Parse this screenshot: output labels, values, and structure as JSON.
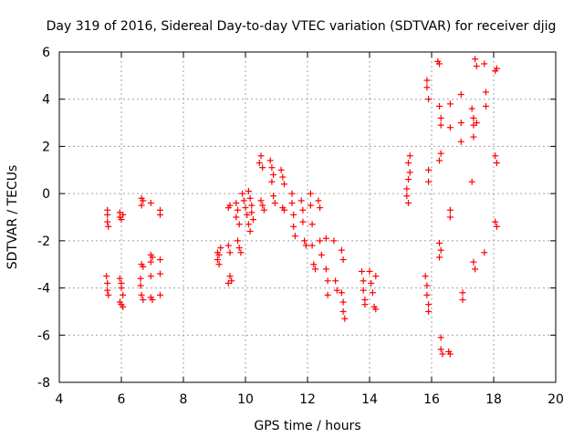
{
  "chart_data": {
    "type": "scatter",
    "title": "Day 319 of 2016, Sidereal Day-to-day VTEC variation (SDTVAR) for receiver djig",
    "xlabel": "GPS time / hours",
    "ylabel": "SDTVAR / TECUs",
    "xlim": [
      4,
      20
    ],
    "ylim": [
      -8,
      6
    ],
    "xticks": [
      4,
      6,
      8,
      10,
      12,
      14,
      16,
      18,
      20
    ],
    "yticks": [
      -8,
      -6,
      -4,
      -2,
      0,
      2,
      4,
      6
    ],
    "grid": true,
    "marker": "plus",
    "color": "#ff0000",
    "series": [
      {
        "name": "SDTVAR",
        "points": [
          [
            5.55,
            -0.7
          ],
          [
            5.55,
            -0.9
          ],
          [
            5.55,
            -1.2
          ],
          [
            5.58,
            -1.4
          ],
          [
            5.52,
            -3.5
          ],
          [
            5.55,
            -3.8
          ],
          [
            5.55,
            -4.1
          ],
          [
            5.58,
            -4.3
          ],
          [
            5.95,
            -0.8
          ],
          [
            5.95,
            -1.0
          ],
          [
            6.0,
            -1.1
          ],
          [
            6.05,
            -0.9
          ],
          [
            5.95,
            -3.6
          ],
          [
            6.0,
            -3.8
          ],
          [
            6.0,
            -4.0
          ],
          [
            6.05,
            -4.3
          ],
          [
            5.95,
            -4.6
          ],
          [
            6.05,
            -4.8
          ],
          [
            6.0,
            -4.7
          ],
          [
            6.65,
            -0.2
          ],
          [
            6.65,
            -0.5
          ],
          [
            6.7,
            -0.3
          ],
          [
            6.95,
            -0.4
          ],
          [
            6.65,
            -3.0
          ],
          [
            6.7,
            -3.1
          ],
          [
            6.62,
            -3.6
          ],
          [
            6.62,
            -3.9
          ],
          [
            6.65,
            -4.3
          ],
          [
            6.7,
            -4.5
          ],
          [
            6.95,
            -2.6
          ],
          [
            6.95,
            -2.9
          ],
          [
            7.0,
            -2.7
          ],
          [
            6.95,
            -3.5
          ],
          [
            6.95,
            -4.4
          ],
          [
            7.0,
            -4.5
          ],
          [
            7.25,
            -0.7
          ],
          [
            7.25,
            -0.9
          ],
          [
            7.25,
            -2.8
          ],
          [
            7.25,
            -3.4
          ],
          [
            7.25,
            -4.3
          ],
          [
            9.1,
            -2.5
          ],
          [
            9.1,
            -2.8
          ],
          [
            9.15,
            -2.6
          ],
          [
            9.15,
            -3.0
          ],
          [
            9.2,
            -2.3
          ],
          [
            9.45,
            -0.6
          ],
          [
            9.5,
            -0.5
          ],
          [
            9.45,
            -2.2
          ],
          [
            9.5,
            -2.5
          ],
          [
            9.5,
            -3.5
          ],
          [
            9.55,
            -3.7
          ],
          [
            9.45,
            -3.8
          ],
          [
            9.7,
            -0.4
          ],
          [
            9.75,
            -0.7
          ],
          [
            9.7,
            -1.0
          ],
          [
            9.8,
            -1.3
          ],
          [
            9.75,
            -2.0
          ],
          [
            9.8,
            -2.3
          ],
          [
            9.85,
            -2.5
          ],
          [
            9.9,
            0.0
          ],
          [
            9.95,
            -0.3
          ],
          [
            10.0,
            -0.6
          ],
          [
            10.05,
            -0.9
          ],
          [
            10.1,
            -1.3
          ],
          [
            10.15,
            -1.6
          ],
          [
            10.1,
            0.1
          ],
          [
            10.15,
            -0.2
          ],
          [
            10.2,
            -0.5
          ],
          [
            10.2,
            -0.8
          ],
          [
            10.25,
            -1.1
          ],
          [
            10.45,
            1.3
          ],
          [
            10.5,
            1.6
          ],
          [
            10.55,
            1.1
          ],
          [
            10.5,
            -0.3
          ],
          [
            10.55,
            -0.5
          ],
          [
            10.6,
            -0.7
          ],
          [
            10.8,
            1.4
          ],
          [
            10.85,
            1.1
          ],
          [
            10.9,
            0.8
          ],
          [
            10.85,
            0.5
          ],
          [
            10.9,
            -0.1
          ],
          [
            10.95,
            -0.4
          ],
          [
            11.15,
            1.0
          ],
          [
            11.2,
            0.7
          ],
          [
            11.25,
            0.4
          ],
          [
            11.2,
            -0.6
          ],
          [
            11.25,
            -0.7
          ],
          [
            11.5,
            0.0
          ],
          [
            11.5,
            -0.4
          ],
          [
            11.55,
            -0.9
          ],
          [
            11.55,
            -1.4
          ],
          [
            11.6,
            -1.8
          ],
          [
            11.8,
            -0.3
          ],
          [
            11.85,
            -0.7
          ],
          [
            11.85,
            -1.2
          ],
          [
            11.9,
            -2.0
          ],
          [
            11.95,
            -2.2
          ],
          [
            12.1,
            0.0
          ],
          [
            12.1,
            -0.5
          ],
          [
            12.15,
            -1.3
          ],
          [
            12.15,
            -2.2
          ],
          [
            12.2,
            -3.0
          ],
          [
            12.25,
            -3.2
          ],
          [
            12.35,
            -0.3
          ],
          [
            12.4,
            -0.6
          ],
          [
            12.4,
            -2.0
          ],
          [
            12.45,
            -2.6
          ],
          [
            12.6,
            -1.9
          ],
          [
            12.6,
            -3.2
          ],
          [
            12.65,
            -3.7
          ],
          [
            12.65,
            -4.3
          ],
          [
            12.85,
            -2.0
          ],
          [
            12.9,
            -3.7
          ],
          [
            12.95,
            -4.1
          ],
          [
            13.1,
            -2.4
          ],
          [
            13.15,
            -2.8
          ],
          [
            13.1,
            -4.2
          ],
          [
            13.15,
            -4.6
          ],
          [
            13.15,
            -5.0
          ],
          [
            13.2,
            -5.3
          ],
          [
            13.75,
            -3.3
          ],
          [
            13.8,
            -3.7
          ],
          [
            13.8,
            -4.1
          ],
          [
            13.85,
            -4.5
          ],
          [
            13.85,
            -4.7
          ],
          [
            14.0,
            -3.3
          ],
          [
            14.05,
            -3.8
          ],
          [
            14.1,
            -4.2
          ],
          [
            14.15,
            -4.8
          ],
          [
            14.2,
            -4.9
          ],
          [
            14.2,
            -3.5
          ],
          [
            15.2,
            -0.1
          ],
          [
            15.2,
            0.2
          ],
          [
            15.25,
            -0.4
          ],
          [
            15.25,
            0.6
          ],
          [
            15.3,
            0.9
          ],
          [
            15.25,
            1.3
          ],
          [
            15.3,
            1.6
          ],
          [
            15.85,
            4.8
          ],
          [
            15.85,
            4.5
          ],
          [
            15.9,
            4.0
          ],
          [
            15.9,
            1.0
          ],
          [
            15.9,
            0.5
          ],
          [
            15.8,
            -3.5
          ],
          [
            15.85,
            -3.9
          ],
          [
            15.85,
            -4.3
          ],
          [
            15.9,
            -4.7
          ],
          [
            15.9,
            -5.0
          ],
          [
            16.2,
            5.6
          ],
          [
            16.25,
            5.5
          ],
          [
            16.25,
            3.7
          ],
          [
            16.3,
            3.2
          ],
          [
            16.3,
            2.9
          ],
          [
            16.3,
            1.7
          ],
          [
            16.25,
            1.4
          ],
          [
            16.25,
            -2.1
          ],
          [
            16.3,
            -2.4
          ],
          [
            16.25,
            -2.7
          ],
          [
            16.3,
            -6.1
          ],
          [
            16.3,
            -6.6
          ],
          [
            16.35,
            -6.8
          ],
          [
            16.6,
            3.8
          ],
          [
            16.6,
            2.8
          ],
          [
            16.6,
            -0.7
          ],
          [
            16.6,
            -1.0
          ],
          [
            16.55,
            -6.7
          ],
          [
            16.6,
            -6.8
          ],
          [
            16.95,
            4.2
          ],
          [
            16.95,
            3.0
          ],
          [
            16.95,
            2.2
          ],
          [
            17.0,
            -4.2
          ],
          [
            17.0,
            -4.5
          ],
          [
            17.3,
            3.6
          ],
          [
            17.35,
            3.2
          ],
          [
            17.35,
            2.9
          ],
          [
            17.35,
            2.4
          ],
          [
            17.3,
            0.5
          ],
          [
            17.35,
            -2.9
          ],
          [
            17.4,
            -3.2
          ],
          [
            17.4,
            5.7
          ],
          [
            17.45,
            5.4
          ],
          [
            17.45,
            3.0
          ],
          [
            17.7,
            5.5
          ],
          [
            17.75,
            4.3
          ],
          [
            17.75,
            3.7
          ],
          [
            17.7,
            -2.5
          ],
          [
            18.05,
            5.2
          ],
          [
            18.1,
            5.3
          ],
          [
            18.05,
            1.6
          ],
          [
            18.1,
            1.3
          ],
          [
            18.05,
            -1.2
          ],
          [
            18.1,
            -1.4
          ]
        ]
      }
    ]
  }
}
